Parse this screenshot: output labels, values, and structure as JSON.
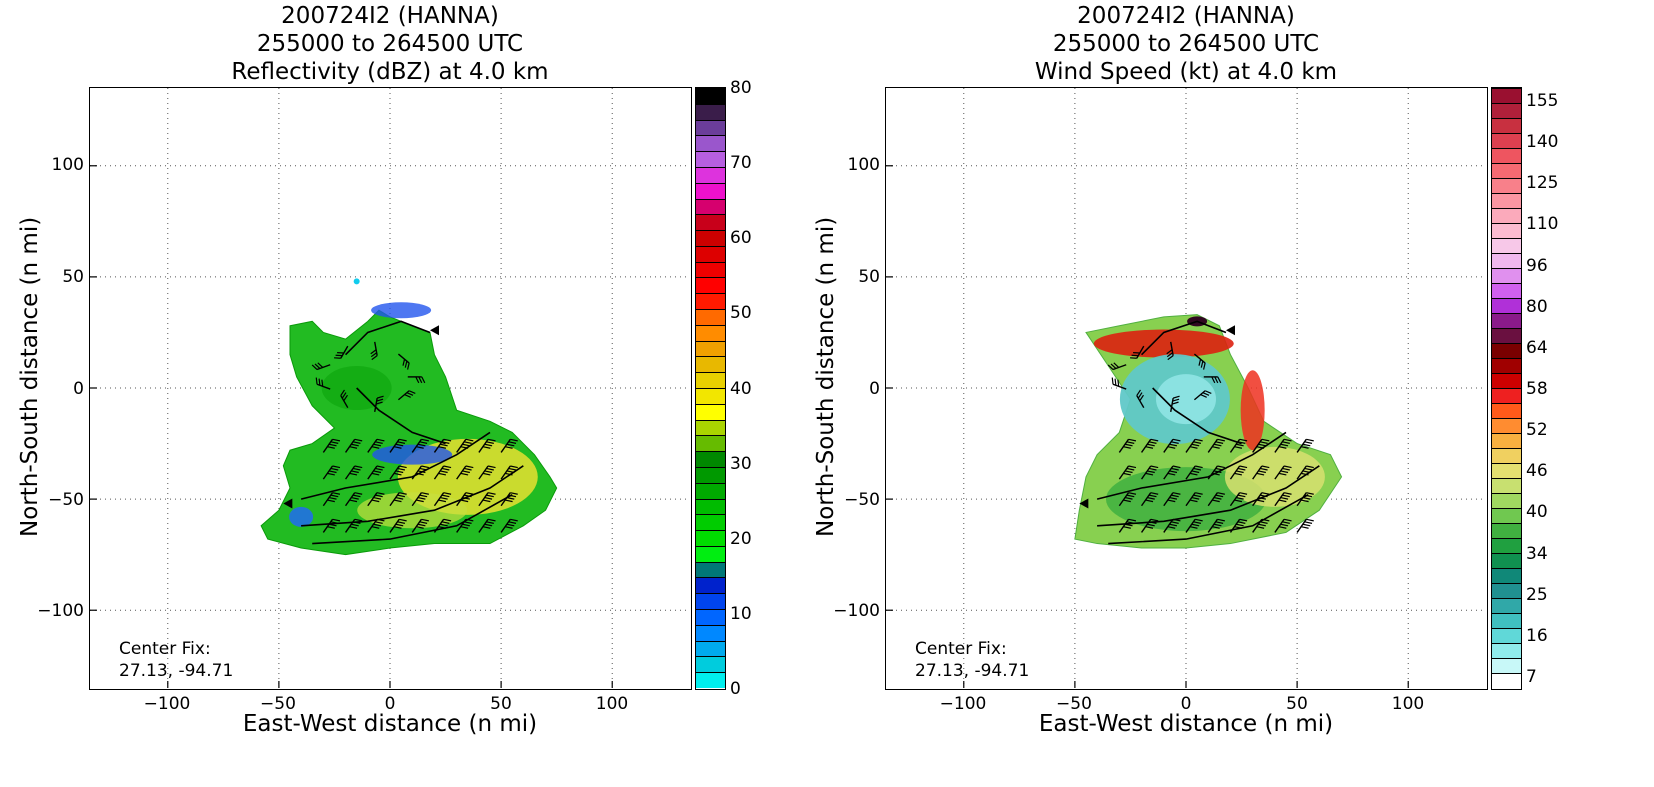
{
  "panels": [
    {
      "title": [
        "200724I2 (HANNA)",
        "255000 to 264500 UTC",
        "Reflectivity (dBZ) at 4.0 km"
      ],
      "xlabel": "East-West distance (n mi)",
      "ylabel": "North-South distance (n mi)",
      "center_fix": [
        "Center Fix:",
        "27.13, -94.71"
      ],
      "cbar_ticks": [
        "80",
        "70",
        "60",
        "50",
        "40",
        "30",
        "20",
        "10",
        "0"
      ],
      "cbar_colors": [
        "#000000",
        "#3a1d4a",
        "#6b3d9a",
        "#9a56cc",
        "#b75fe0",
        "#dd33dd",
        "#ee11cc",
        "#d6006e",
        "#c8001a",
        "#cc0000",
        "#dd0000",
        "#ee0000",
        "#ff0000",
        "#ff1a00",
        "#ff6a00",
        "#ff8c00",
        "#f0a000",
        "#e8b800",
        "#e8d000",
        "#f2e600",
        "#ffff00",
        "#aad400",
        "#66bb00",
        "#008800",
        "#009900",
        "#00aa00",
        "#00bb00",
        "#00cc00",
        "#00dd00",
        "#00ee11",
        "#007777",
        "#0022cc",
        "#0044ee",
        "#0066ff",
        "#0088ff",
        "#00aaee",
        "#00ccdd",
        "#00eeee"
      ]
    },
    {
      "title": [
        "200724I2 (HANNA)",
        "255000 to 264500 UTC",
        "Wind Speed (kt) at 4.0 km"
      ],
      "xlabel": "East-West distance (n mi)",
      "ylabel": "North-South distance (n mi)",
      "center_fix": [
        "Center Fix:",
        "27.13, -94.71"
      ],
      "cbar_ticks": [
        "155",
        "140",
        "125",
        "110",
        "96",
        "80",
        "64",
        "58",
        "52",
        "46",
        "40",
        "34",
        "25",
        "16",
        "7"
      ],
      "cbar_colors": [
        "#9a1030",
        "#b0203a",
        "#c83040",
        "#dd4050",
        "#ee5560",
        "#f56a72",
        "#f8808a",
        "#fa96a2",
        "#fbaabb",
        "#fbbbd0",
        "#f7c8e8",
        "#f0b8ee",
        "#e090ee",
        "#d060ee",
        "#b030d8",
        "#8a1a8a",
        "#6a1040",
        "#7a0000",
        "#a00000",
        "#cc0000",
        "#ee2020",
        "#ff5a1a",
        "#ff8c30",
        "#f8b040",
        "#f0d060",
        "#e4e070",
        "#c8e070",
        "#a0d860",
        "#70c850",
        "#40b040",
        "#20a040",
        "#109050",
        "#108878",
        "#209090",
        "#30a8a8",
        "#40c0c0",
        "#60d8d8",
        "#90ecec",
        "#c8f8f8",
        "#ffffff"
      ]
    }
  ],
  "x_ticks": [
    "−100",
    "−50",
    "0",
    "50",
    "100"
  ],
  "y_ticks": [
    "100",
    "50",
    "0",
    "−50",
    "−100"
  ],
  "chart_data": [
    {
      "type": "heatmap",
      "title": "200724I2 (HANNA) 255000 to 264500 UTC Reflectivity (dBZ) at 4.0 km",
      "xlabel": "East-West distance (n mi)",
      "ylabel": "North-South distance (n mi)",
      "xlim": [
        -135,
        135
      ],
      "ylim": [
        -135,
        135
      ],
      "x_ticks": [
        -100,
        -50,
        0,
        50,
        100
      ],
      "y_ticks": [
        100,
        50,
        0,
        -50,
        -100
      ],
      "grid": true,
      "colorbar": {
        "label": "dBZ",
        "ticks": [
          80,
          70,
          60,
          50,
          40,
          30,
          20,
          10,
          0
        ],
        "range": [
          0,
          80
        ]
      },
      "echo_extent": {
        "x": [
          -60,
          75
        ],
        "y": [
          -75,
          48
        ]
      },
      "annotation": "Center Fix: 27.13, -94.71"
    },
    {
      "type": "heatmap",
      "title": "200724I2 (HANNA) 255000 to 264500 UTC Wind Speed (kt) at 4.0 km",
      "xlabel": "East-West distance (n mi)",
      "ylabel": "North-South distance (n mi)",
      "xlim": [
        -135,
        135
      ],
      "ylim": [
        -135,
        135
      ],
      "x_ticks": [
        -100,
        -50,
        0,
        50,
        100
      ],
      "y_ticks": [
        100,
        50,
        0,
        -50,
        -100
      ],
      "grid": true,
      "colorbar": {
        "label": "kt",
        "ticks": [
          155,
          140,
          125,
          110,
          96,
          80,
          64,
          58,
          52,
          46,
          40,
          34,
          25,
          16,
          7
        ]
      },
      "echo_extent": {
        "x": [
          -50,
          70
        ],
        "y": [
          -75,
          35
        ]
      },
      "annotation": "Center Fix: 27.13, -94.71"
    }
  ]
}
